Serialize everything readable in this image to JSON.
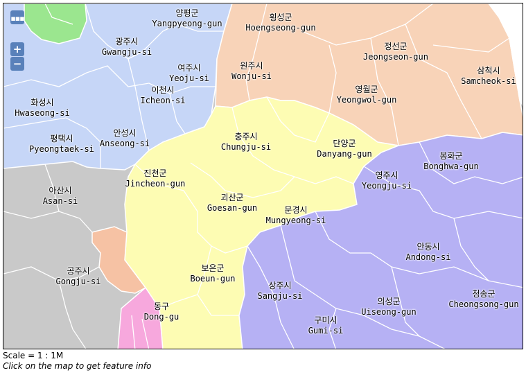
{
  "map": {
    "colors": {
      "gyeonggi": "#c6d6f7",
      "gangwon": "#f8d3b8",
      "chungbuk": "#fdfcb3",
      "gyeongbuk": "#b6b1f4",
      "chungnam": "#c9c9c9",
      "daejeon": "#f6c2a4",
      "seoul": "#9be68f",
      "daegu": "#f7a8dd",
      "border": "#ffffff"
    },
    "labels": [
      {
        "ko": "양평군",
        "en": "Yangpyeong-gun"
      },
      {
        "ko": "횡성군",
        "en": "Hoengseong-gun"
      },
      {
        "ko": "광주시",
        "en": "Gwangju-si"
      },
      {
        "ko": "정선군",
        "en": "Jeongseon-gun"
      },
      {
        "ko": "원주시",
        "en": "Wonju-si"
      },
      {
        "ko": "여주시",
        "en": "Yeoju-si"
      },
      {
        "ko": "삼척시",
        "en": "Samcheok-si"
      },
      {
        "ko": "이천시",
        "en": "Icheon-si"
      },
      {
        "ko": "화성시",
        "en": "Hwaseong-si"
      },
      {
        "ko": "영월군",
        "en": "Yeongwol-gun"
      },
      {
        "ko": "충주시",
        "en": "Chungju-si"
      },
      {
        "ko": "평택시",
        "en": "Pyeongtaek-si"
      },
      {
        "ko": "안성시",
        "en": "Anseong-si"
      },
      {
        "ko": "단양군",
        "en": "Danyang-gun"
      },
      {
        "ko": "봉화군",
        "en": "Bonghwa-gun"
      },
      {
        "ko": "진천군",
        "en": "Jincheon-gun"
      },
      {
        "ko": "영주시",
        "en": "Yeongju-si"
      },
      {
        "ko": "아산시",
        "en": "Asan-si"
      },
      {
        "ko": "괴산군",
        "en": "Goesan-gun"
      },
      {
        "ko": "문경시",
        "en": "Mungyeong-si"
      },
      {
        "ko": "안동시",
        "en": "Andong-si"
      },
      {
        "ko": "보은군",
        "en": "Boeun-gun"
      },
      {
        "ko": "공주시",
        "en": "Gongju-si"
      },
      {
        "ko": "상주시",
        "en": "Sangju-si"
      },
      {
        "ko": "의성군",
        "en": "Uiseong-gun"
      },
      {
        "ko": "청송군",
        "en": "Cheongsong-gun"
      },
      {
        "ko": "동구",
        "en": "Dong-gu"
      },
      {
        "ko": "구미시",
        "en": "Gumi-si"
      }
    ]
  },
  "controls": {
    "layer_switcher_icon": "layer-switcher-icon",
    "zoom_in_label": "+",
    "zoom_out_label": "−"
  },
  "footer": {
    "scale_text": "Scale = 1 : 1M",
    "hint_text": "Click on the map to get feature info"
  }
}
